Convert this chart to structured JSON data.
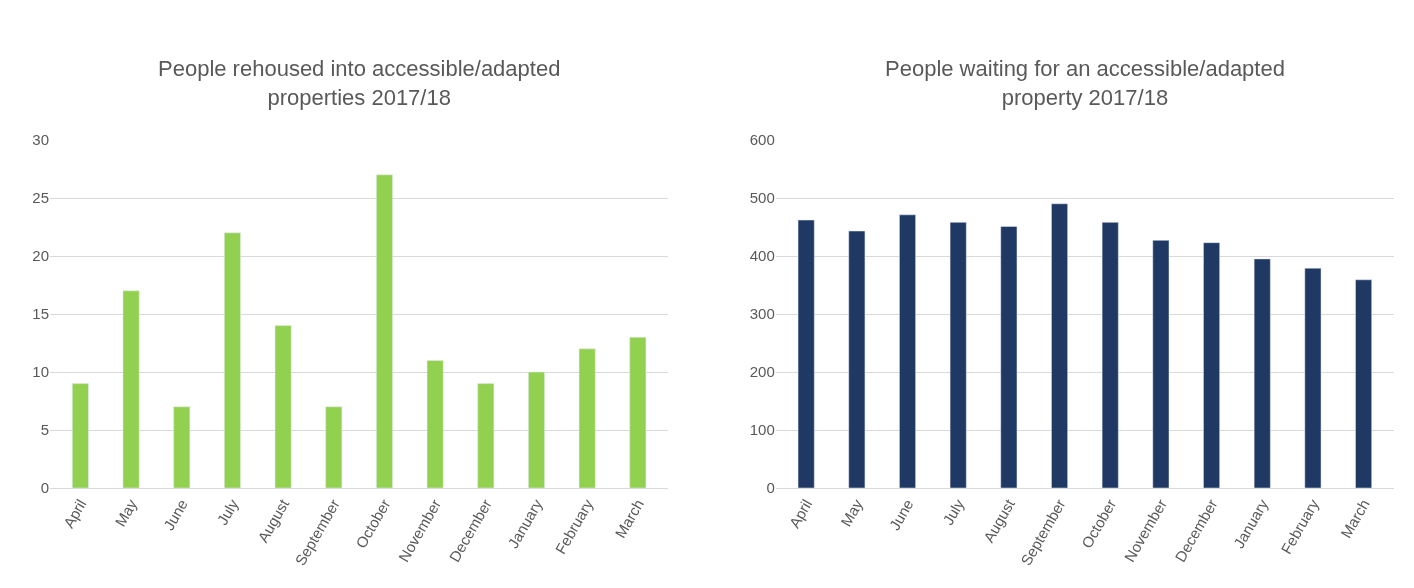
{
  "chart_data": [
    {
      "type": "bar",
      "title": "People rehoused into accessible/adapted properties 2017/18",
      "categories": [
        "April",
        "May",
        "June",
        "July",
        "August",
        "September",
        "October",
        "November",
        "December",
        "January",
        "February",
        "March"
      ],
      "values": [
        9,
        17,
        7,
        22,
        14,
        7,
        27,
        11,
        9,
        10,
        12,
        13
      ],
      "color": "#92d050",
      "ylim": [
        0,
        30
      ],
      "yticks": [
        0,
        5,
        10,
        15,
        20,
        25,
        30
      ],
      "grid": "y"
    },
    {
      "type": "bar",
      "title": "People waiting for an accessible/adapted property 2017/18",
      "categories": [
        "April",
        "May",
        "June",
        "July",
        "August",
        "September",
        "October",
        "November",
        "December",
        "January",
        "February",
        "March"
      ],
      "values": [
        462,
        443,
        471,
        458,
        451,
        490,
        458,
        427,
        423,
        395,
        379,
        359
      ],
      "color": "#203864",
      "ylim": [
        0,
        600
      ],
      "yticks": [
        0,
        100,
        200,
        300,
        400,
        500,
        600
      ],
      "grid": "y"
    }
  ]
}
